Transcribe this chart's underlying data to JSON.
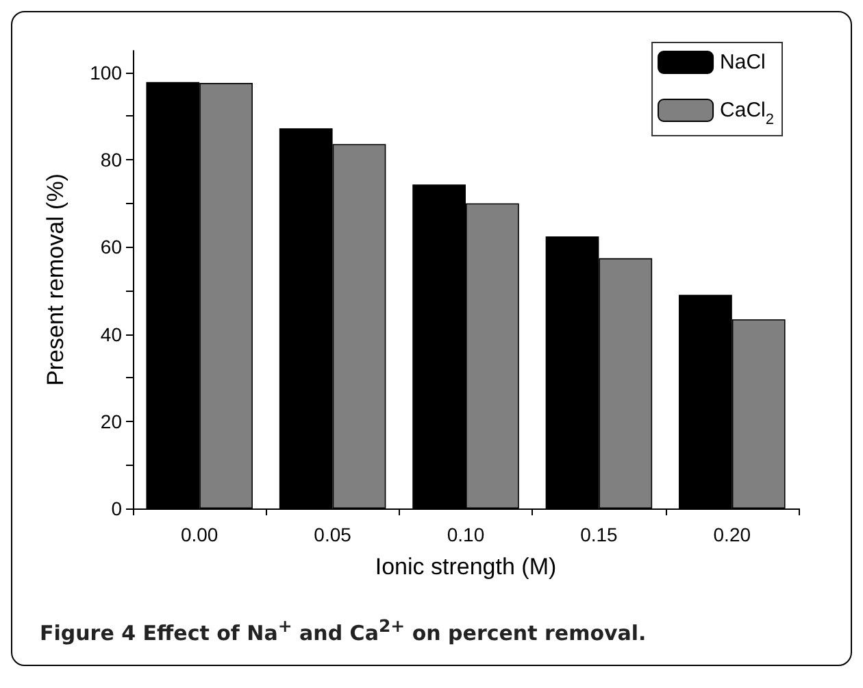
{
  "chart_data": {
    "type": "bar",
    "xlabel": "Ionic strength (M)",
    "ylabel": "Present removal (%)",
    "categories": [
      "0.00",
      "0.05",
      "0.10",
      "0.15",
      "0.20"
    ],
    "series": [
      {
        "name": "NaCl",
        "color": "#000000",
        "values": [
          97.8,
          87.2,
          74.3,
          62.4,
          49.0
        ]
      },
      {
        "name": "CaCl$_{2}$",
        "color": "#808080",
        "values": [
          97.6,
          83.6,
          70.0,
          57.4,
          43.4
        ]
      }
    ],
    "ylim": [
      0,
      105
    ],
    "yticks": [
      0,
      {
        "value": 10,
        "label": null
      },
      20,
      {
        "value": 30,
        "label": null
      },
      40,
      {
        "value": 50,
        "label": null
      },
      60,
      {
        "value": 70,
        "label": null
      },
      80,
      {
        "value": 90,
        "label": null
      },
      100
    ],
    "grid": false,
    "legend": "top right",
    "annotations": [
      "Figure 4 Effect of Na$^{+}$ and Ca$^{2+}$ on percent removal."
    ]
  }
}
